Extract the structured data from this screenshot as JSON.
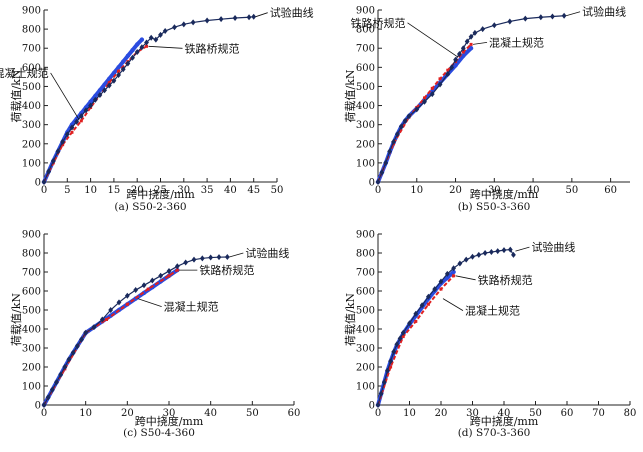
{
  "chart_data": [
    {
      "type": "scatter",
      "caption": "(a) S50-2-360",
      "xlabel": "跨中挠度/mm",
      "ylabel": "荷载值/kN",
      "xlim": [
        0,
        50
      ],
      "ylim": [
        0,
        900
      ],
      "xticks": [
        0,
        5,
        10,
        15,
        20,
        25,
        30,
        35,
        40,
        45,
        50
      ],
      "yticks": [
        0,
        100,
        200,
        300,
        400,
        500,
        600,
        700,
        800,
        900
      ],
      "series": [
        {
          "name": "试验曲线",
          "color": "#1a2a5c",
          "marker": "diamond",
          "x": [
            0,
            1,
            2,
            3,
            4,
            5,
            6,
            7,
            8,
            9,
            10,
            11,
            12,
            13,
            14,
            15,
            16,
            17,
            18,
            19,
            20,
            21,
            22,
            23,
            24,
            25,
            26,
            28,
            30,
            32,
            35,
            38,
            41,
            44,
            45
          ],
          "y": [
            0,
            55,
            110,
            160,
            210,
            250,
            285,
            315,
            345,
            375,
            400,
            430,
            455,
            480,
            505,
            530,
            560,
            590,
            620,
            650,
            680,
            705,
            730,
            755,
            745,
            770,
            790,
            810,
            825,
            835,
            845,
            852,
            858,
            862,
            865
          ]
        },
        {
          "name": "铁路桥规范",
          "color": "#e02020",
          "marker": "dash",
          "x": [
            0,
            2,
            4,
            6,
            8,
            10,
            12,
            14,
            16,
            18,
            20,
            22
          ],
          "y": [
            0,
            100,
            195,
            260,
            320,
            390,
            455,
            520,
            580,
            630,
            680,
            710
          ]
        },
        {
          "name": "混凝土规范",
          "color": "#2a4be0",
          "marker": "dot",
          "x": [
            0,
            1,
            2,
            3,
            4,
            5,
            6,
            7,
            8,
            9,
            10,
            11,
            12,
            13,
            14,
            15,
            16,
            17,
            18,
            19,
            20,
            21
          ],
          "y": [
            0,
            55,
            110,
            160,
            210,
            260,
            300,
            330,
            360,
            390,
            420,
            450,
            480,
            510,
            540,
            570,
            600,
            630,
            660,
            690,
            720,
            745
          ]
        }
      ],
      "annotations": [
        {
          "text": "试验曲线",
          "series": 0,
          "at_x": 45,
          "at_y": 865
        },
        {
          "text": "铁路桥规范",
          "series": 1,
          "at_x": 22,
          "at_y": 710
        },
        {
          "text": "混凝土规范",
          "series": 2,
          "at_x": 7,
          "at_y": 330
        }
      ]
    },
    {
      "type": "scatter",
      "caption": "(b) S50-3-360",
      "xlabel": "跨中挠度/mm",
      "ylabel": "荷载值/kN",
      "xlim": [
        0,
        65
      ],
      "ylim": [
        0,
        900
      ],
      "xticks": [
        0,
        10,
        20,
        30,
        40,
        50,
        60
      ],
      "yticks": [
        0,
        100,
        200,
        300,
        400,
        500,
        600,
        700,
        800,
        900
      ],
      "series": [
        {
          "name": "试验曲线",
          "color": "#1a2a5c",
          "marker": "diamond",
          "x": [
            0,
            1,
            2,
            3,
            4,
            5,
            6,
            7,
            8,
            10,
            12,
            14,
            16,
            18,
            19,
            20,
            21,
            22,
            23,
            24,
            25,
            27,
            30,
            34,
            38,
            42,
            45,
            48
          ],
          "y": [
            0,
            50,
            100,
            160,
            210,
            250,
            290,
            320,
            345,
            380,
            420,
            460,
            510,
            565,
            600,
            640,
            670,
            700,
            735,
            760,
            780,
            800,
            820,
            840,
            855,
            862,
            866,
            870
          ]
        },
        {
          "name": "铁路桥规范",
          "color": "#e02020",
          "marker": "dash",
          "x": [
            0,
            4,
            8,
            10,
            12,
            14,
            16,
            18,
            20,
            22,
            24
          ],
          "y": [
            0,
            200,
            340,
            390,
            440,
            490,
            540,
            585,
            630,
            680,
            720
          ]
        },
        {
          "name": "混凝土规范",
          "color": "#2a4be0",
          "marker": "dot",
          "x": [
            0,
            1,
            2,
            3,
            4,
            5,
            6,
            7,
            8,
            10,
            12,
            14,
            16,
            18,
            20,
            22,
            24
          ],
          "y": [
            0,
            50,
            100,
            155,
            205,
            250,
            290,
            320,
            345,
            385,
            430,
            475,
            520,
            565,
            610,
            660,
            700
          ]
        }
      ],
      "annotations": [
        {
          "text": "试验曲线",
          "series": 0,
          "at_x": 48,
          "at_y": 870
        },
        {
          "text": "铁路桥规范",
          "series": 1,
          "at_x": 20,
          "at_y": 655
        },
        {
          "text": "混凝土规范",
          "series": 2,
          "at_x": 24,
          "at_y": 720
        }
      ]
    },
    {
      "type": "scatter",
      "caption": "(c) S50-4-360",
      "xlabel": "跨中挠度/mm",
      "ylabel": "荷载值/kN",
      "xlim": [
        0,
        60
      ],
      "ylim": [
        0,
        900
      ],
      "xticks": [
        0,
        10,
        20,
        30,
        40,
        50,
        60
      ],
      "yticks": [
        0,
        100,
        200,
        300,
        400,
        500,
        600,
        700,
        800,
        900
      ],
      "series": [
        {
          "name": "试验曲线",
          "color": "#1a2a5c",
          "marker": "diamond",
          "x": [
            0,
            1,
            2,
            3,
            4,
            5,
            6,
            7,
            8,
            9,
            10,
            12,
            14,
            16,
            18,
            20,
            22,
            24,
            26,
            28,
            30,
            32,
            34,
            36,
            38,
            40,
            42,
            44
          ],
          "y": [
            0,
            40,
            80,
            120,
            160,
            200,
            240,
            275,
            310,
            345,
            380,
            410,
            450,
            500,
            540,
            575,
            605,
            630,
            655,
            680,
            705,
            730,
            750,
            765,
            772,
            776,
            778,
            779
          ]
        },
        {
          "name": "铁路桥规范",
          "color": "#e02020",
          "marker": "dash",
          "x": [
            0,
            5,
            10,
            15,
            20,
            25,
            30,
            32
          ],
          "y": [
            0,
            190,
            380,
            450,
            530,
            610,
            680,
            710
          ]
        },
        {
          "name": "混凝土规范",
          "color": "#2a4be0",
          "marker": "dot",
          "x": [
            0,
            1,
            2,
            3,
            4,
            5,
            6,
            7,
            8,
            9,
            10,
            12,
            14,
            16,
            18,
            20,
            22,
            24,
            26,
            28,
            30,
            32
          ],
          "y": [
            0,
            40,
            80,
            120,
            160,
            200,
            240,
            275,
            310,
            345,
            380,
            410,
            440,
            470,
            500,
            530,
            560,
            590,
            620,
            650,
            680,
            710
          ]
        }
      ],
      "annotations": [
        {
          "text": "试验曲线",
          "series": 0,
          "at_x": 44,
          "at_y": 779
        },
        {
          "text": "铁路桥规范",
          "series": 1,
          "at_x": 32,
          "at_y": 710
        },
        {
          "text": "混凝土规范",
          "series": 2,
          "at_x": 22,
          "at_y": 560
        }
      ]
    },
    {
      "type": "scatter",
      "caption": "(d) S70-3-360",
      "xlabel": "跨中挠度/mm",
      "ylabel": "荷载值/kN",
      "xlim": [
        0,
        80
      ],
      "ylim": [
        0,
        900
      ],
      "xticks": [
        0,
        10,
        20,
        30,
        40,
        50,
        60,
        70,
        80
      ],
      "yticks": [
        0,
        100,
        200,
        300,
        400,
        500,
        600,
        700,
        800,
        900
      ],
      "series": [
        {
          "name": "试验曲线",
          "color": "#1a2a5c",
          "marker": "diamond",
          "x": [
            0,
            1,
            2,
            3,
            4,
            5,
            6,
            7,
            8,
            10,
            12,
            14,
            16,
            18,
            20,
            22,
            24,
            26,
            28,
            30,
            32,
            34,
            36,
            38,
            40,
            42,
            43
          ],
          "y": [
            0,
            60,
            120,
            180,
            230,
            280,
            320,
            350,
            380,
            430,
            480,
            525,
            570,
            610,
            650,
            690,
            720,
            745,
            765,
            780,
            790,
            800,
            805,
            810,
            815,
            818,
            790
          ]
        },
        {
          "name": "铁路桥规范",
          "color": "#e02020",
          "marker": "dash",
          "x": [
            0,
            4,
            8,
            12,
            16,
            20,
            24
          ],
          "y": [
            0,
            200,
            360,
            440,
            530,
            610,
            680
          ]
        },
        {
          "name": "混凝土规范",
          "color": "#2a4be0",
          "marker": "dot",
          "x": [
            0,
            1,
            2,
            3,
            4,
            5,
            6,
            7,
            8,
            10,
            12,
            14,
            16,
            18,
            20,
            22,
            24
          ],
          "y": [
            0,
            60,
            120,
            180,
            230,
            275,
            315,
            345,
            375,
            425,
            470,
            515,
            560,
            600,
            640,
            670,
            700
          ]
        }
      ],
      "annotations": [
        {
          "text": "试验曲线",
          "series": 0,
          "at_x": 43,
          "at_y": 810
        },
        {
          "text": "铁路桥规范",
          "series": 1,
          "at_x": 24,
          "at_y": 680
        },
        {
          "text": "混凝土规范",
          "series": 2,
          "at_x": 20,
          "at_y": 560
        }
      ]
    }
  ]
}
